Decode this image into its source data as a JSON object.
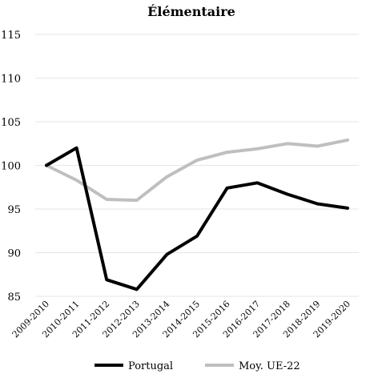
{
  "chart_data": {
    "type": "line",
    "title": "Élémentaire",
    "xlabel": "",
    "ylabel": "",
    "categories": [
      "2009-2010",
      "2010-2011",
      "2011-2012",
      "2012-2013",
      "2013-2014",
      "2014-2015",
      "2015-2016",
      "2016-2017",
      "2017-2018",
      "2018-2019",
      "2019-2020"
    ],
    "y_ticks": [
      "85",
      "90",
      "95",
      "100",
      "105",
      "110",
      "115"
    ],
    "ylim": [
      85,
      115
    ],
    "grid": true,
    "legend_position": "bottom",
    "series": [
      {
        "name": "Portugal",
        "color": "#000000",
        "values": [
          100,
          102,
          86.9,
          85.8,
          89.8,
          91.9,
          97.4,
          98.0,
          96.7,
          95.6,
          95.1
        ]
      },
      {
        "name": "Moy. UE-22",
        "color": "#bfbfbf",
        "values": [
          100,
          98.3,
          96.1,
          96.0,
          98.7,
          100.6,
          101.5,
          101.9,
          102.5,
          102.2,
          102.9
        ]
      }
    ]
  }
}
